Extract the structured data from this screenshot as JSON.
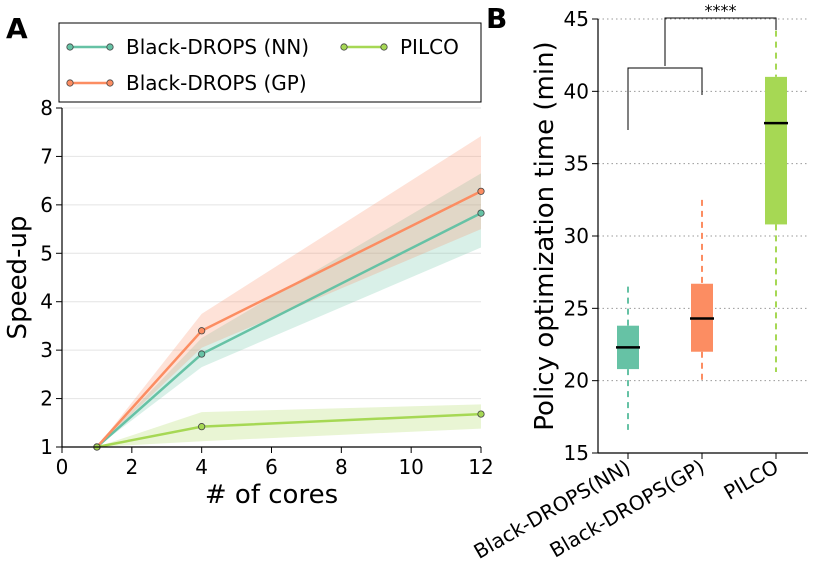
{
  "chart_data": [
    {
      "panel": "A",
      "type": "line",
      "xlabel": "# of cores",
      "ylabel": "Speed-up",
      "xlim": [
        0,
        12
      ],
      "ylim": [
        1,
        8
      ],
      "xticks": [
        0,
        2,
        4,
        6,
        8,
        10,
        12
      ],
      "yticks": [
        1,
        2,
        3,
        4,
        5,
        6,
        7,
        8
      ],
      "grid": "horizontal",
      "legend_position": "top",
      "series": [
        {
          "name": "Black-DROPS (NN)",
          "color": "#66c2a5",
          "x": [
            1,
            4,
            12
          ],
          "y": [
            1.0,
            2.92,
            5.83
          ],
          "lower": [
            1.0,
            2.65,
            5.12
          ],
          "upper": [
            1.0,
            3.25,
            6.65
          ]
        },
        {
          "name": "Black-DROPS (GP)",
          "color": "#fc8d62",
          "x": [
            1,
            4,
            12
          ],
          "y": [
            1.0,
            3.4,
            6.28
          ],
          "lower": [
            1.0,
            3.05,
            5.5
          ],
          "upper": [
            1.0,
            3.75,
            7.42
          ]
        },
        {
          "name": "PILCO",
          "color": "#a6d854",
          "x": [
            1,
            4,
            12
          ],
          "y": [
            1.0,
            1.42,
            1.68
          ],
          "lower": [
            1.0,
            1.12,
            1.38
          ],
          "upper": [
            1.0,
            1.72,
            1.88
          ]
        }
      ]
    },
    {
      "panel": "B",
      "type": "box",
      "ylabel": "Policy optimization time (min)",
      "ylim": [
        15,
        45
      ],
      "yticks": [
        15,
        20,
        25,
        30,
        35,
        40,
        45
      ],
      "grid": "horizontal dotted",
      "categories": [
        "Black-DROPS(NN)",
        "Black-DROPS(GP)",
        "PILCO"
      ],
      "boxes": [
        {
          "name": "Black-DROPS(NN)",
          "color": "#66c2a5",
          "whisker_low": 16.6,
          "q1": 20.8,
          "median": 22.3,
          "q3": 23.8,
          "whisker_high": 26.5
        },
        {
          "name": "Black-DROPS(GP)",
          "color": "#fc8d62",
          "whisker_low": 20.0,
          "q1": 22.0,
          "median": 24.3,
          "q3": 26.7,
          "whisker_high": 32.5
        },
        {
          "name": "PILCO",
          "color": "#a6d854",
          "whisker_low": 20.6,
          "q1": 30.8,
          "median": 37.8,
          "q3": 41.0,
          "whisker_high": 44.2
        }
      ],
      "significance": "****"
    }
  ]
}
